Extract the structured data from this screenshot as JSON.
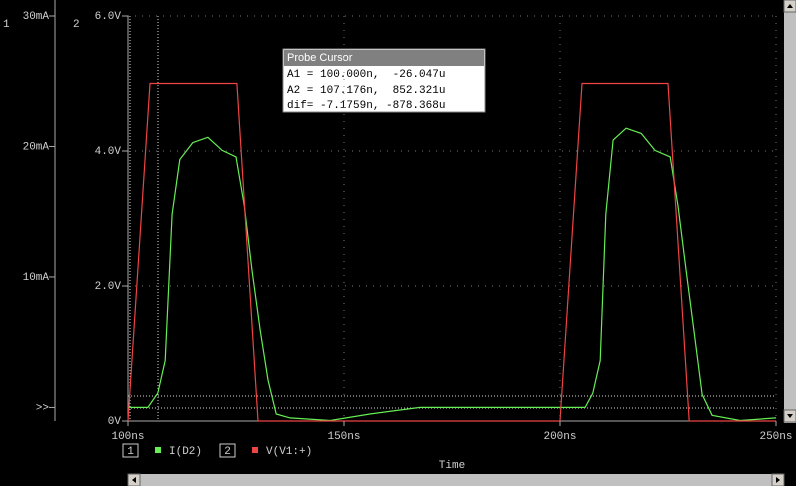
{
  "chart_data": {
    "type": "line",
    "x_label": "Time",
    "y_axis_number": "1",
    "y2_axis_number": "2",
    "xlim": [
      100,
      250
    ],
    "xticks": [
      {
        "value": 100,
        "label": "100ns"
      },
      {
        "value": 150,
        "label": "150ns"
      },
      {
        "value": 200,
        "label": "200ns"
      },
      {
        "value": 250,
        "label": "250ns"
      }
    ],
    "ylim": [
      -1.04,
      30
    ],
    "yticks": [
      {
        "value": 0,
        "label": ">>"
      },
      {
        "value": 10,
        "label": "10mA"
      },
      {
        "value": 20,
        "label": "20mA"
      },
      {
        "value": 30,
        "label": "30mA"
      }
    ],
    "y2lim": [
      0,
      6
    ],
    "y2ticks": [
      {
        "value": 0,
        "label": "0V"
      },
      {
        "value": 2,
        "label": "2.0V"
      },
      {
        "value": 4,
        "label": "4.0V"
      },
      {
        "value": 6,
        "label": "6.0V"
      }
    ],
    "grid": true,
    "series": [
      {
        "name": "I(D2)",
        "legend_number": "1",
        "color": "#66ee55",
        "x": [
          100,
          104.6,
          106.9,
          108.6,
          110.2,
          112.0,
          115.0,
          118.5,
          121.8,
          125.0,
          126.9,
          128.7,
          130.6,
          132.4,
          134.3,
          137.5,
          146.8,
          156.0,
          167.6,
          181.5,
          200,
          205.8,
          207.6,
          209.3,
          210.6,
          212.3,
          215.3,
          218.8,
          222.0,
          225.5,
          227.3,
          229.2,
          231.0,
          232.9,
          235.2,
          241.7,
          250
        ],
        "values": [
          0,
          0,
          1.1,
          3.6,
          14.8,
          19.0,
          20.3,
          20.7,
          19.7,
          19.2,
          15.5,
          10.5,
          5.9,
          2.1,
          -0.5,
          -0.8,
          -1.0,
          -0.5,
          0,
          0,
          0,
          0,
          1.1,
          3.6,
          14.8,
          20.5,
          21.4,
          21.0,
          19.7,
          19.2,
          15.5,
          10.5,
          5.9,
          1.0,
          -0.6,
          -1.0,
          -0.8
        ]
      },
      {
        "name": "V(V1:+)",
        "legend_number": "2",
        "color": "#ee4444",
        "axis": "y2",
        "x": [
          100,
          105.1,
          125.2,
          130.1,
          200,
          205.1,
          225,
          229.9,
          250
        ],
        "values": [
          0,
          5,
          5,
          0,
          0,
          5,
          5,
          0,
          0
        ]
      }
    ],
    "probe_cursor": {
      "title": "Probe Cursor",
      "rows": [
        "A1 = 100.000n,  -26.047u",
        "A2 = 107.176n,  852.321u",
        "dif= -7.1759n, -878.368u"
      ]
    }
  }
}
